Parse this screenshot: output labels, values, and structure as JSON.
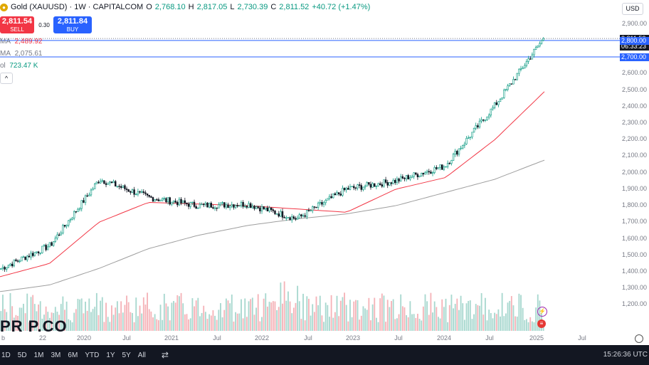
{
  "legend": {
    "title": "Gold (XAUUSD) · 1W · CAPITALCOM",
    "open_key": "O",
    "open": "2,768.10",
    "high_key": "H",
    "high": "2,817.05",
    "low_key": "L",
    "low": "2,730.39",
    "close_key": "C",
    "close": "2,811.52",
    "change": "+40.72 (+1.47%)"
  },
  "trade": {
    "sell_price": "2,811.54",
    "sell_label": "SELL",
    "spread": "0.30",
    "buy_price": "2,811.84",
    "buy_label": "BUY"
  },
  "indicators": [
    {
      "name": "MA",
      "value": "2,489.92",
      "color": "#f23645"
    },
    {
      "name": "MA",
      "value": "2,075.61",
      "color": "#787b86"
    },
    {
      "name": "ol",
      "value": "723.47 K",
      "color": "#089981"
    }
  ],
  "currency": "USD",
  "price_axis": [
    "2,900.00",
    "2,811.52",
    "06:33:23",
    "2,800.00",
    "2,700.00",
    "2,600.00",
    "2,500.00",
    "2,400.00",
    "2,300.00",
    "2,200.00",
    "2,100.00",
    "2,000.00",
    "1,900.00",
    "1,800.00",
    "1,700.00",
    "1,600.00",
    "1,500.00",
    "1,400.00",
    "1,300.00",
    "1,200.00"
  ],
  "time_axis": [
    "b",
    "22",
    "2020",
    "Jul",
    "2021",
    "Jul",
    "2022",
    "Jul",
    "2023",
    "Jul",
    "2024",
    "Jul",
    "2025",
    "Jul"
  ],
  "timeframes": [
    "1D",
    "5D",
    "1M",
    "3M",
    "6M",
    "YTD",
    "1Y",
    "5Y",
    "All"
  ],
  "clock": "15:26:36 UTC",
  "watermark": "PR P.CO",
  "colors": {
    "up": "#089981",
    "down": "#131722",
    "ma_fast": "#f23645",
    "ma_slow": "#9e9e9e",
    "accent": "#2962ff"
  },
  "chart_data": {
    "type": "candlestick",
    "x": [
      "2019-07",
      "2020-01",
      "2020-07",
      "2021-01",
      "2021-07",
      "2022-01",
      "2022-07",
      "2023-01",
      "2023-07",
      "2024-01",
      "2024-07",
      "2025-01"
    ],
    "close": [
      1420,
      1560,
      1960,
      1850,
      1800,
      1810,
      1720,
      1900,
      1950,
      2040,
      2400,
      2811.52
    ],
    "ma_fast": [
      1370,
      1450,
      1700,
      1820,
      1810,
      1800,
      1780,
      1760,
      1900,
      1970,
      2200,
      2489.92
    ],
    "ma_slow": [
      1280,
      1320,
      1420,
      1540,
      1620,
      1680,
      1720,
      1750,
      1800,
      1880,
      1960,
      2075.61
    ],
    "ylim": [
      1150,
      2950
    ],
    "last_price": 2811.52,
    "volume_last": "723.47 K"
  }
}
